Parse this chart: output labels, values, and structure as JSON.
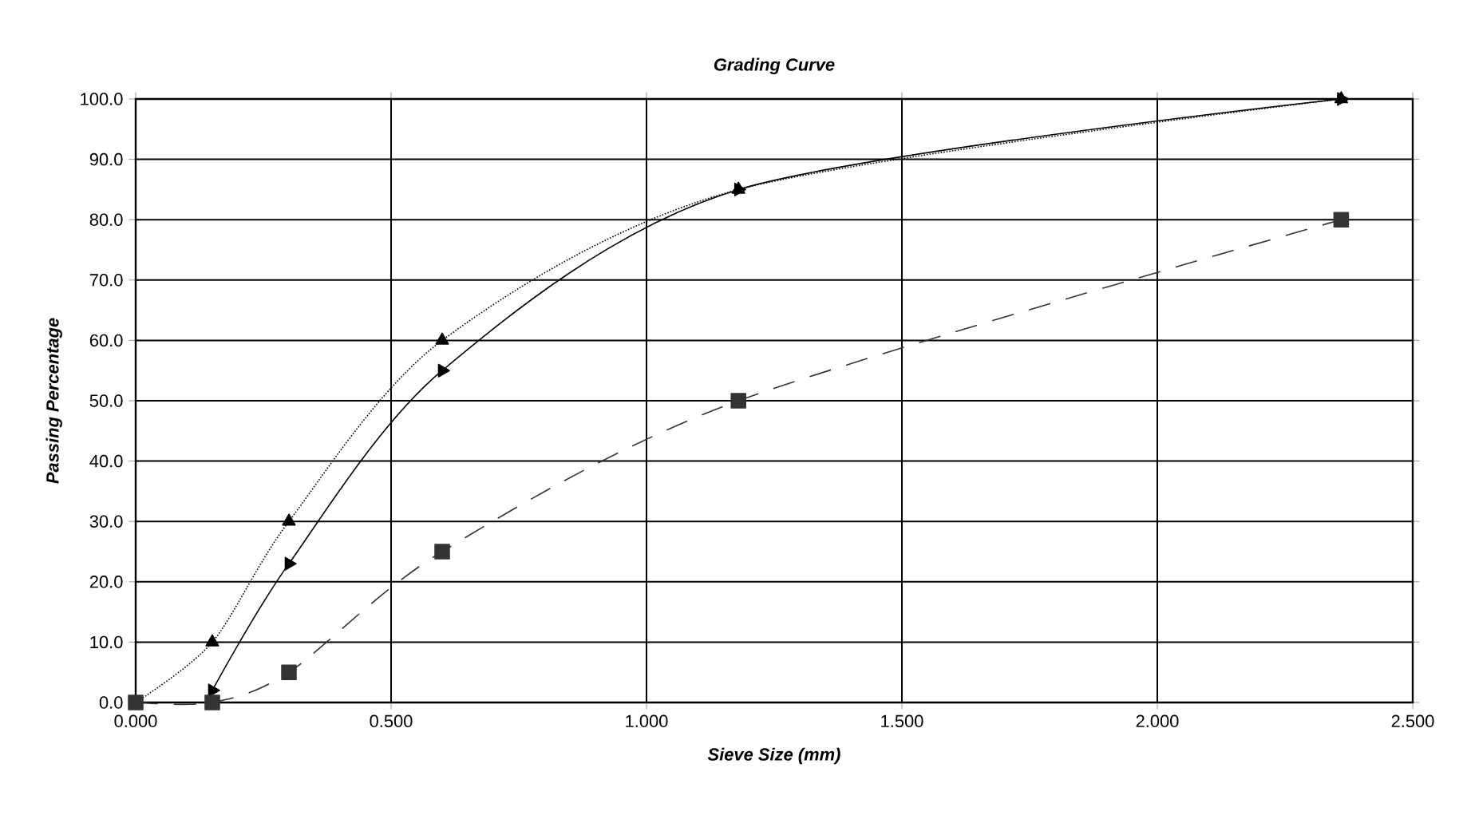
{
  "chart_data": {
    "type": "line",
    "title": "Grading Curve",
    "xlabel": "Sieve Size (mm)",
    "ylabel": "Passing Percentage",
    "xlim": [
      0,
      2.5
    ],
    "ylim": [
      0,
      100
    ],
    "xticks": [
      {
        "value": 0,
        "label": "0.000"
      },
      {
        "value": 0.5,
        "label": "0.500"
      },
      {
        "value": 1,
        "label": "1.000"
      },
      {
        "value": 1.5,
        "label": "1.500"
      },
      {
        "value": 2,
        "label": "2.000"
      },
      {
        "value": 2.5,
        "label": "2.500"
      }
    ],
    "yticks": [
      {
        "value": 0,
        "label": "0.0"
      },
      {
        "value": 10,
        "label": "10.0"
      },
      {
        "value": 20,
        "label": "20.0"
      },
      {
        "value": 30,
        "label": "30.0"
      },
      {
        "value": 40,
        "label": "40.0"
      },
      {
        "value": 50,
        "label": "50.0"
      },
      {
        "value": 60,
        "label": "60.0"
      },
      {
        "value": 70,
        "label": "70.0"
      },
      {
        "value": 80,
        "label": "80.0"
      },
      {
        "value": 90,
        "label": "90.0"
      },
      {
        "value": 100,
        "label": "100.0"
      }
    ],
    "grid": true,
    "series": [
      {
        "color": "#000000",
        "marker": "triangle",
        "line_style": "dotted",
        "x": [
          0,
          0.15,
          0.3,
          0.6,
          1.18,
          2.36
        ],
        "values": [
          0,
          10,
          30,
          60,
          85,
          100
        ]
      },
      {
        "color": "#000000",
        "marker": "triangle-right",
        "line_style": "solid",
        "x": [
          0.15,
          0.3,
          0.6,
          1.18,
          2.36
        ],
        "values": [
          2,
          23,
          55,
          85,
          100
        ]
      },
      {
        "color": "#333333",
        "marker": "square",
        "line_style": "dashed",
        "x": [
          0,
          0.15,
          0.3,
          0.6,
          1.18,
          2.36
        ],
        "values": [
          0,
          0,
          5,
          25,
          50,
          80
        ]
      }
    ]
  }
}
